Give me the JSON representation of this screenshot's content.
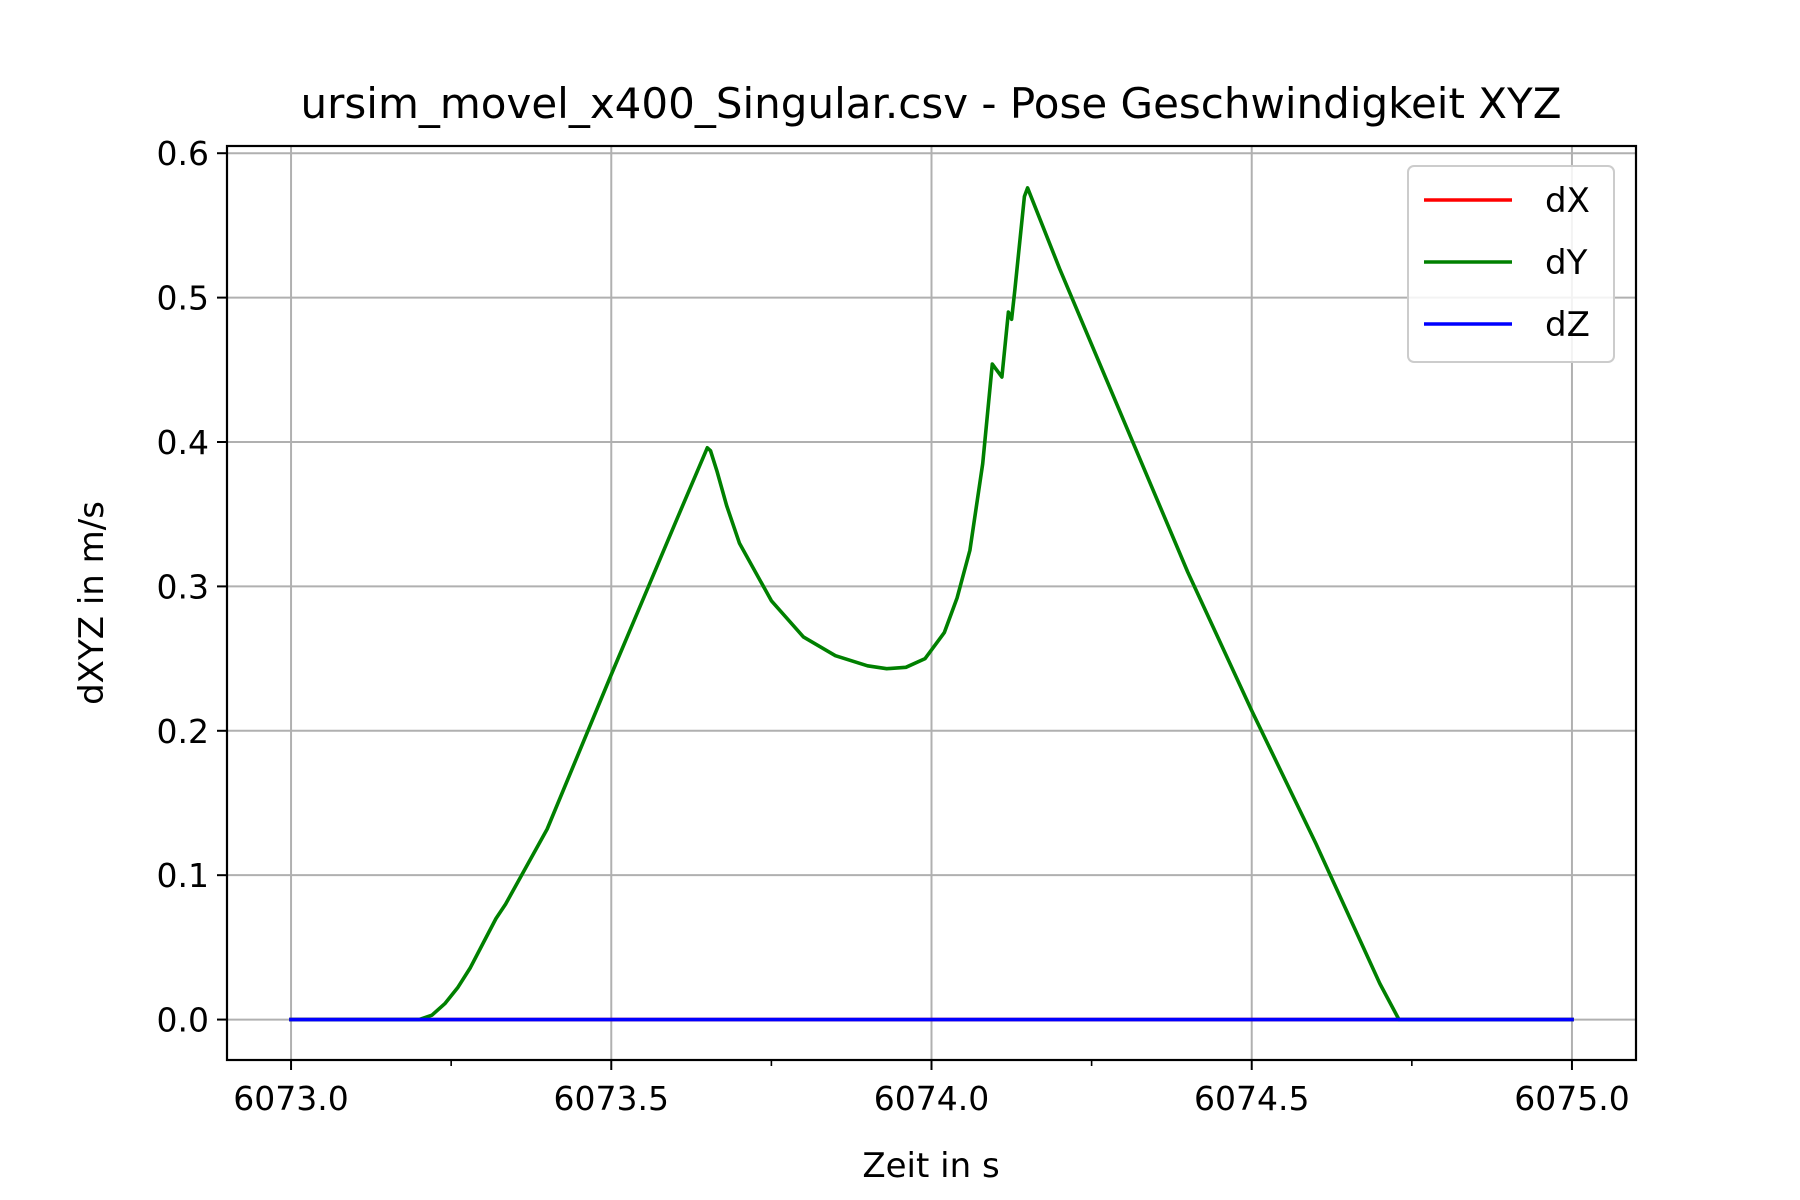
{
  "chart_data": {
    "type": "line",
    "title": "ursim_movel_x400_Singular.csv - Pose Geschwindigkeit XYZ",
    "xlabel": "Zeit in s",
    "ylabel": "dXYZ in m/s",
    "xlim": [
      6072.9,
      6075.1
    ],
    "ylim": [
      -0.028,
      0.605
    ],
    "grid": true,
    "legend_position": "top-right",
    "x_ticks": [
      {
        "value": 6073.0,
        "label": "6073.0"
      },
      {
        "value": 6073.5,
        "label": "6073.5"
      },
      {
        "value": 6074.0,
        "label": "6074.0"
      },
      {
        "value": 6074.5,
        "label": "6074.5"
      },
      {
        "value": 6075.0,
        "label": "6075.0"
      }
    ],
    "x_minor_ticks": [
      6073.25,
      6073.75,
      6074.25,
      6074.75
    ],
    "y_ticks": [
      {
        "value": 0.0,
        "label": "0.0"
      },
      {
        "value": 0.1,
        "label": "0.1"
      },
      {
        "value": 0.2,
        "label": "0.2"
      },
      {
        "value": 0.3,
        "label": "0.3"
      },
      {
        "value": 0.4,
        "label": "0.4"
      },
      {
        "value": 0.5,
        "label": "0.5"
      },
      {
        "value": 0.6,
        "label": "0.6"
      }
    ],
    "series": [
      {
        "name": "dX",
        "color": "#ff0000",
        "x": [
          6073.0,
          6075.0
        ],
        "y": [
          0.0,
          0.0
        ]
      },
      {
        "name": "dY",
        "color": "#008000",
        "x": [
          6073.0,
          6073.2,
          6073.22,
          6073.24,
          6073.26,
          6073.28,
          6073.3,
          6073.32,
          6073.335,
          6073.4,
          6073.5,
          6073.6,
          6073.65,
          6073.655,
          6073.665,
          6073.68,
          6073.7,
          6073.75,
          6073.8,
          6073.85,
          6073.9,
          6073.93,
          6073.96,
          6073.99,
          6074.02,
          6074.04,
          6074.06,
          6074.08,
          6074.095,
          6074.1,
          6074.11,
          6074.12,
          6074.125,
          6074.13,
          6074.145,
          6074.15,
          6074.2,
          6074.3,
          6074.4,
          6074.5,
          6074.6,
          6074.7,
          6074.73,
          6074.8,
          6074.9,
          6075.0
        ],
        "y": [
          0.0,
          0.0,
          0.003,
          0.011,
          0.022,
          0.036,
          0.053,
          0.07,
          0.08,
          0.132,
          0.239,
          0.344,
          0.396,
          0.394,
          0.38,
          0.356,
          0.33,
          0.29,
          0.265,
          0.252,
          0.245,
          0.243,
          0.244,
          0.25,
          0.268,
          0.292,
          0.325,
          0.385,
          0.454,
          0.451,
          0.445,
          0.49,
          0.485,
          0.505,
          0.57,
          0.576,
          0.52,
          0.415,
          0.31,
          0.214,
          0.122,
          0.025,
          0.0,
          0.0,
          0.0,
          0.0
        ]
      },
      {
        "name": "dZ",
        "color": "#0000ff",
        "x": [
          6073.0,
          6075.0
        ],
        "y": [
          0.0,
          0.0
        ]
      }
    ]
  }
}
